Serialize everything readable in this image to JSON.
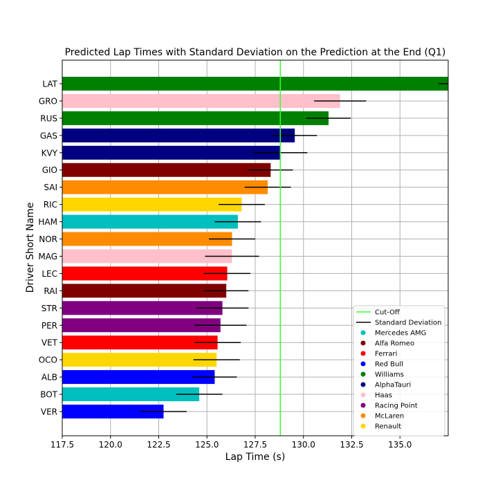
{
  "chart_data": {
    "type": "bar",
    "orientation": "horizontal",
    "title": "Predicted Lap Times with Standard Deviation on the Prediction at the End (Q1)",
    "xlabel": "Lap Time (s)",
    "ylabel": "Driver Short Name",
    "xlim": [
      117.5,
      137.5
    ],
    "xticks": [
      "117.5",
      "120.0",
      "122.5",
      "125.0",
      "127.5",
      "130.0",
      "132.5",
      "135.0"
    ],
    "grid": true,
    "cutoff": 128.8,
    "cutoff_color": "#33ff33",
    "legend": {
      "placement": "lower-right",
      "entries": [
        {
          "label": "Cut-Off",
          "kind": "line",
          "color": "#33ff33"
        },
        {
          "label": "Standard Deviation",
          "kind": "line",
          "color": "#000000"
        },
        {
          "label": "Mercedes AMG",
          "kind": "dot",
          "color": "#00bfbf"
        },
        {
          "label": "Alfa Romeo",
          "kind": "dot",
          "color": "#800000"
        },
        {
          "label": "Ferrari",
          "kind": "dot",
          "color": "#ff0000"
        },
        {
          "label": "Red Bull",
          "kind": "dot",
          "color": "#0000ff"
        },
        {
          "label": "Williams",
          "kind": "dot",
          "color": "#008000"
        },
        {
          "label": "AlphaTauri",
          "kind": "dot",
          "color": "#000080"
        },
        {
          "label": "Haas",
          "kind": "dot",
          "color": "#ffc0cb"
        },
        {
          "label": "Racing Point",
          "kind": "dot",
          "color": "#800080"
        },
        {
          "label": "McLaren",
          "kind": "dot",
          "color": "#ff8c00"
        },
        {
          "label": "Renault",
          "kind": "dot",
          "color": "#ffd700"
        }
      ]
    },
    "drivers": [
      {
        "name": "LAT",
        "value": 138.0,
        "std": 1.0,
        "color": "#008000"
      },
      {
        "name": "GRO",
        "value": 131.9,
        "std": 1.35,
        "color": "#ffc0cb"
      },
      {
        "name": "RUS",
        "value": 131.3,
        "std": 1.15,
        "color": "#008000"
      },
      {
        "name": "GAS",
        "value": 129.55,
        "std": 1.15,
        "color": "#000080"
      },
      {
        "name": "KVY",
        "value": 128.8,
        "std": 1.4,
        "color": "#000080"
      },
      {
        "name": "GIO",
        "value": 128.3,
        "std": 1.15,
        "color": "#800000"
      },
      {
        "name": "SAI",
        "value": 128.15,
        "std": 1.2,
        "color": "#ff8c00"
      },
      {
        "name": "RIC",
        "value": 126.8,
        "std": 1.2,
        "color": "#ffd700"
      },
      {
        "name": "HAM",
        "value": 126.6,
        "std": 1.2,
        "color": "#00bfbf"
      },
      {
        "name": "NOR",
        "value": 126.3,
        "std": 1.2,
        "color": "#ff8c00"
      },
      {
        "name": "MAG",
        "value": 126.3,
        "std": 1.4,
        "color": "#ffc0cb"
      },
      {
        "name": "LEC",
        "value": 126.05,
        "std": 1.2,
        "color": "#ff0000"
      },
      {
        "name": "RAI",
        "value": 126.0,
        "std": 1.15,
        "color": "#800000"
      },
      {
        "name": "STR",
        "value": 125.8,
        "std": 1.35,
        "color": "#800080"
      },
      {
        "name": "PER",
        "value": 125.7,
        "std": 1.35,
        "color": "#800080"
      },
      {
        "name": "VET",
        "value": 125.55,
        "std": 1.2,
        "color": "#ff0000"
      },
      {
        "name": "OCO",
        "value": 125.5,
        "std": 1.2,
        "color": "#ffd700"
      },
      {
        "name": "ALB",
        "value": 125.4,
        "std": 1.15,
        "color": "#0000ff"
      },
      {
        "name": "BOT",
        "value": 124.6,
        "std": 1.2,
        "color": "#00bfbf"
      },
      {
        "name": "VER",
        "value": 122.75,
        "std": 1.2,
        "color": "#0000ff"
      }
    ]
  }
}
